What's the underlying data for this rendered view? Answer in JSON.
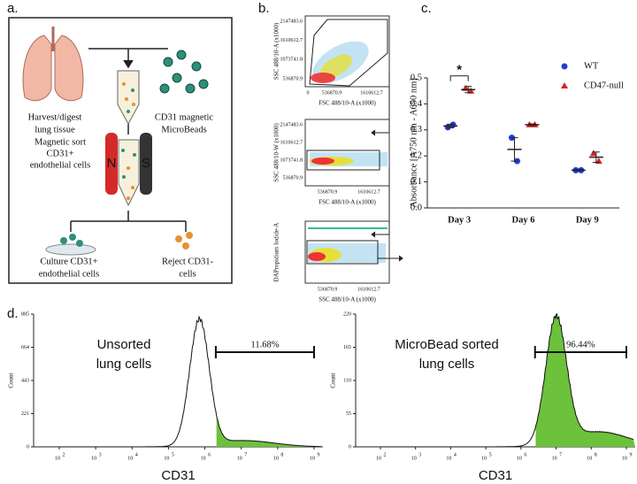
{
  "panel_labels": [
    "a.",
    "b.",
    "c.",
    "d."
  ],
  "diagram": {
    "harvest": [
      "Harvest/digest",
      "lung tissue"
    ],
    "beads": [
      "CD31 magnetic",
      "MicroBeads"
    ],
    "sort": [
      "Magnetic sort",
      "CD31+",
      "endothelial cells"
    ],
    "magnet_poles": [
      "N",
      "S"
    ],
    "culture": [
      "Culture CD31+",
      "endothelial cells"
    ],
    "reject": [
      "Reject CD31-",
      "cells"
    ]
  },
  "gating": [
    {
      "x_label": "FSC 488/10-A (x1000)",
      "y_label": "SSC 488/10-A (x1000)",
      "xticks": [
        0,
        536870.9,
        1610612.7
      ],
      "yticks": [
        2147483.6,
        1610612.7,
        1073741.8,
        536870.9
      ]
    },
    {
      "x_label": "FSC 488/10-A (x1000)",
      "y_label": "SSC 488/10-W (x1000)",
      "xticks": [
        536870.9,
        1610612.7
      ],
      "yticks": [
        2147483.6,
        1610612.7,
        1073741.8,
        536870.9
      ]
    },
    {
      "x_label": "SSC 488/10-A (x1000)",
      "y_label": "DAPropidium Iodide-A",
      "xticks": [
        536870.9,
        1610612.7
      ],
      "yticks": []
    }
  ],
  "histograms": {
    "x_label": "CD31",
    "y_label": "Count",
    "x_tick_base": "10",
    "x_tick_exponents": [
      2,
      3,
      4,
      5,
      6,
      7,
      8,
      9
    ],
    "panels": [
      {
        "title": [
          "Unsorted",
          "lung cells"
        ],
        "yticks": [
          0,
          221,
          443,
          664,
          885
        ],
        "gate_label": "11.68%"
      },
      {
        "title": [
          "MicroBead sorted",
          "lung cells"
        ],
        "yticks": [
          0,
          55,
          110,
          165,
          220
        ],
        "gate_label": "96.44%"
      }
    ]
  },
  "chart_data": {
    "type": "scatter",
    "y_label": "Absorbance [A750 nm - A650 nm]",
    "categories": [
      "Day 3",
      "Day 6",
      "Day 9"
    ],
    "ylim": [
      0,
      0.5
    ],
    "yticks": [
      {
        "value": 0,
        "label": "0.0"
      },
      0.1,
      0.2,
      0.3,
      0.4,
      0.5
    ],
    "significance": "*",
    "series": [
      {
        "name": "WT",
        "color": "#1f3fd6",
        "marker": "circle",
        "values": [
          [
            0.31,
            0.32
          ],
          [
            0.27,
            0.18
          ],
          [
            0.145,
            0.145
          ]
        ],
        "means": [
          0.315,
          0.225,
          0.145
        ],
        "errors": [
          0.007,
          0.045,
          0.002
        ]
      },
      {
        "name": "CD47-null",
        "color": "#e02020",
        "marker": "triangle",
        "values": [
          [
            0.46,
            0.45
          ],
          [
            0.32,
            0.32
          ],
          [
            0.21,
            0.18
          ]
        ],
        "means": [
          0.455,
          0.32,
          0.195
        ],
        "errors": [
          0.012,
          0.003,
          0.02
        ]
      }
    ]
  }
}
